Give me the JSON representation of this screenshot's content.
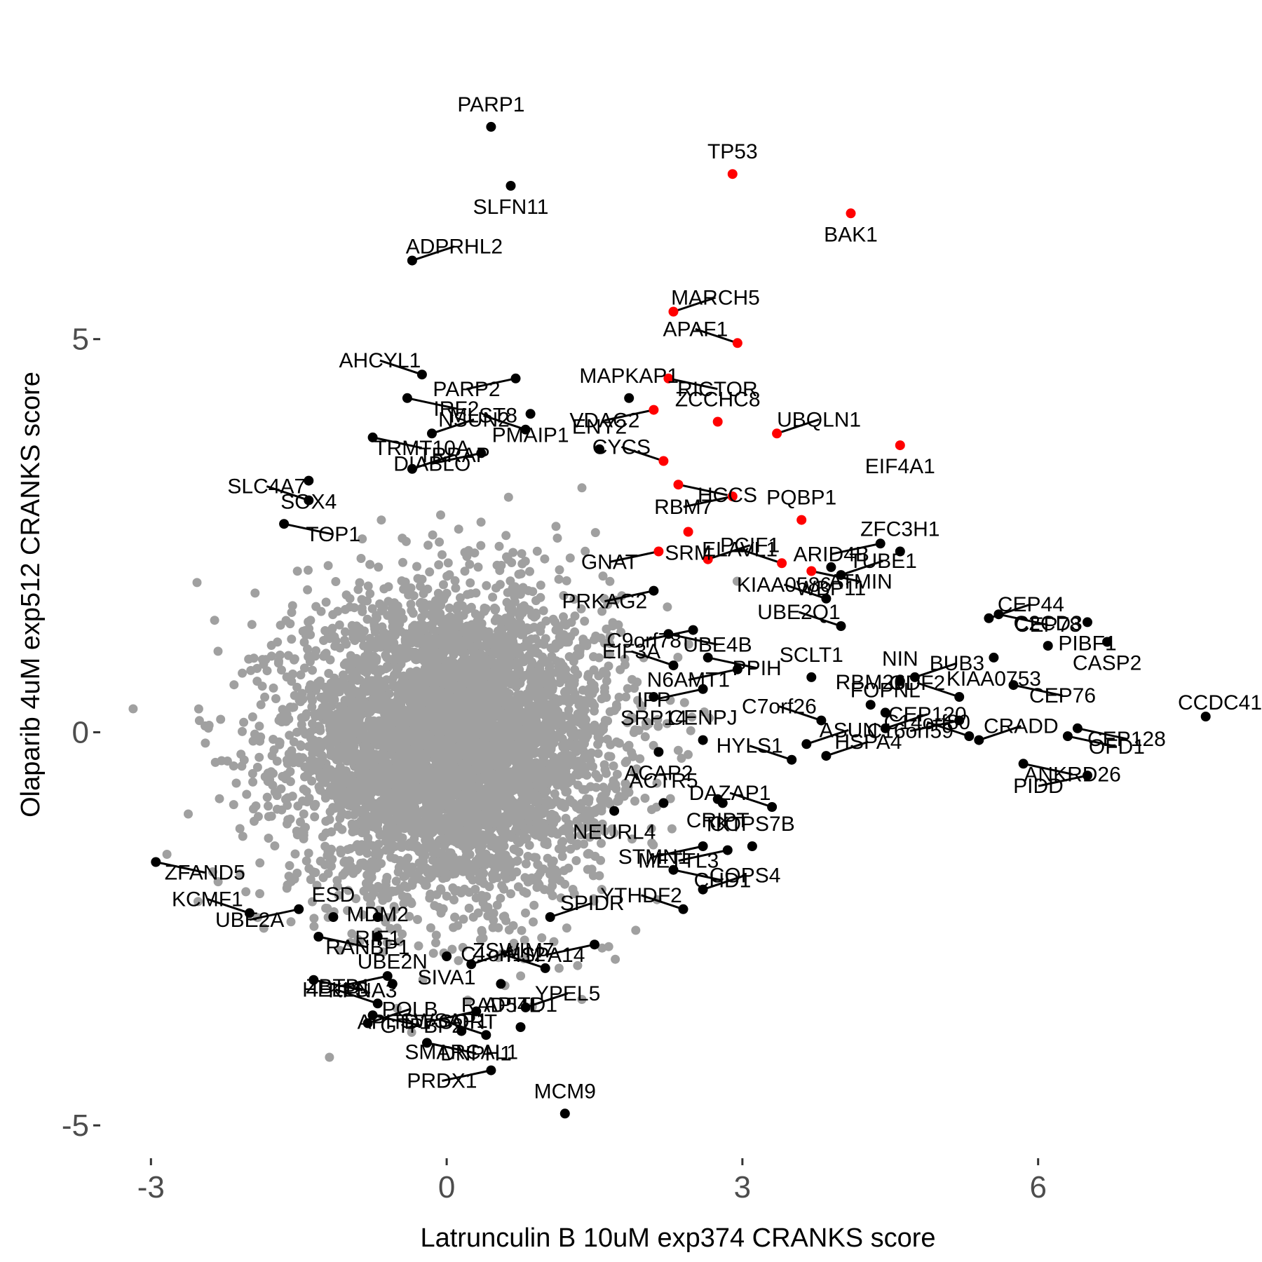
{
  "chart_data": {
    "type": "scatter",
    "title": "",
    "xlabel": "Latrunculin B 10uM exp374 CRANKS score",
    "ylabel": "Olaparib 4uM exp512 CRANKS score",
    "xlim": [
      -3.5,
      8.2
    ],
    "ylim": [
      -5.4,
      8.6
    ],
    "x_ticks": [
      -3,
      0,
      3,
      6
    ],
    "y_ticks": [
      -5,
      0,
      5
    ],
    "grid": false,
    "legend": "none",
    "colors": {
      "background": "#bfbfbf",
      "labeled": "#000000",
      "highlight": "#ff0000",
      "tick_text": "#4d4d4d"
    },
    "background_cloud": {
      "n": 5200,
      "x_mean": 0.05,
      "x_sd": 0.8,
      "y_mean": -0.15,
      "y_sd": 0.95
    },
    "highlight_points": [
      {
        "label": "TP53",
        "x": 2.9,
        "y": 7.1
      },
      {
        "label": "BAK1",
        "x": 4.1,
        "y": 6.6
      },
      {
        "label": "MARCH5",
        "x": 2.3,
        "y": 5.35
      },
      {
        "label": "APAF1",
        "x": 2.95,
        "y": 4.95
      },
      {
        "label": "RICTOR",
        "x": 2.25,
        "y": 4.5
      },
      {
        "label": "VDAC2",
        "x": 2.1,
        "y": 4.1
      },
      {
        "label": "ZCCHC8",
        "x": 2.75,
        "y": 3.95
      },
      {
        "label": "EIF4A1",
        "x": 4.6,
        "y": 3.65
      },
      {
        "label": "UBQLN1",
        "x": 3.35,
        "y": 3.8
      },
      {
        "label": "CYCS",
        "x": 2.2,
        "y": 3.45
      },
      {
        "label": "HCCS",
        "x": 2.35,
        "y": 3.15
      },
      {
        "label": "RBM7",
        "x": 2.9,
        "y": 3.0
      },
      {
        "label": "PQBP1",
        "x": 3.6,
        "y": 2.7
      },
      {
        "label": "SRM",
        "x": 2.45,
        "y": 2.55
      },
      {
        "label": "PCIF1",
        "x": 2.65,
        "y": 2.2
      },
      {
        "label": "ELAVL1",
        "x": 3.4,
        "y": 2.15
      },
      {
        "label": "ATMIN",
        "x": 3.7,
        "y": 2.05
      },
      {
        "label": "GNAT",
        "x": 2.15,
        "y": 2.3
      }
    ],
    "labeled_points": [
      {
        "label": "PARP1",
        "x": 0.45,
        "y": 7.7
      },
      {
        "label": "SLFN11",
        "x": 0.65,
        "y": 6.95
      },
      {
        "label": "ADPRHL2",
        "x": -0.35,
        "y": 6.0
      },
      {
        "label": "AHCYL1",
        "x": -0.25,
        "y": 4.55
      },
      {
        "label": "IRF2",
        "x": -0.4,
        "y": 4.25
      },
      {
        "label": "PARP2",
        "x": 0.7,
        "y": 4.5
      },
      {
        "label": "MAPKAP1",
        "x": 1.85,
        "y": 4.25
      },
      {
        "label": "PMAIP1",
        "x": 0.85,
        "y": 4.05
      },
      {
        "label": "NSUN2",
        "x": -0.15,
        "y": 3.8
      },
      {
        "label": "MLST8",
        "x": 0.8,
        "y": 3.85
      },
      {
        "label": "TRMT10A",
        "x": -0.75,
        "y": 3.75
      },
      {
        "label": "DIABLO",
        "x": 0.35,
        "y": 3.55
      },
      {
        "label": "ENY2",
        "x": 1.55,
        "y": 3.6
      },
      {
        "label": "SOX4",
        "x": -1.4,
        "y": 3.2
      },
      {
        "label": "TRRAP",
        "x": -0.35,
        "y": 3.35
      },
      {
        "label": "SLC4A7",
        "x": -1.4,
        "y": 2.95
      },
      {
        "label": "TOP1",
        "x": -1.65,
        "y": 2.65
      },
      {
        "label": "ARID4B",
        "x": 4.4,
        "y": 2.4
      },
      {
        "label": "ZFC3H1",
        "x": 4.6,
        "y": 2.3
      },
      {
        "label": "WBP11",
        "x": 3.9,
        "y": 2.1
      },
      {
        "label": "TUBE1",
        "x": 4.0,
        "y": 2.0
      },
      {
        "label": "KIAA0586",
        "x": 3.85,
        "y": 1.7
      },
      {
        "label": "CEP78",
        "x": 5.6,
        "y": 1.5
      },
      {
        "label": "PRKAG2",
        "x": 2.1,
        "y": 1.8
      },
      {
        "label": "C2CD3",
        "x": 6.1,
        "y": 1.1
      },
      {
        "label": "PIBF1",
        "x": 6.5,
        "y": 1.4
      },
      {
        "label": "CEP44",
        "x": 5.5,
        "y": 1.45
      },
      {
        "label": "UBE2Q1",
        "x": 4.0,
        "y": 1.35
      },
      {
        "label": "UBE4B",
        "x": 2.25,
        "y": 1.25
      },
      {
        "label": "C9orf78",
        "x": 2.5,
        "y": 1.3
      },
      {
        "label": "NIN",
        "x": 4.6,
        "y": 0.65
      },
      {
        "label": "CASP2",
        "x": 6.7,
        "y": 1.15
      },
      {
        "label": "BUB3",
        "x": 4.75,
        "y": 0.7
      },
      {
        "label": "EIF3A",
        "x": 2.3,
        "y": 0.85
      },
      {
        "label": "PPIH",
        "x": 2.65,
        "y": 0.95
      },
      {
        "label": "N6AMT1",
        "x": 2.95,
        "y": 0.8
      },
      {
        "label": "SCLT1",
        "x": 3.7,
        "y": 0.7
      },
      {
        "label": "KIAA0753",
        "x": 5.55,
        "y": 0.95
      },
      {
        "label": "CCDC41",
        "x": 7.7,
        "y": 0.2
      },
      {
        "label": "ODF2",
        "x": 5.2,
        "y": 0.45
      },
      {
        "label": "CEP76",
        "x": 5.75,
        "y": 0.6
      },
      {
        "label": "IPP",
        "x": 2.6,
        "y": 0.55
      },
      {
        "label": "RBM26",
        "x": 4.3,
        "y": 0.35
      },
      {
        "label": "SRP14",
        "x": 2.1,
        "y": 0.45
      },
      {
        "label": "CEP120",
        "x": 4.45,
        "y": 0.05
      },
      {
        "label": "C7orf26",
        "x": 3.8,
        "y": 0.15
      },
      {
        "label": "CEP128",
        "x": 6.4,
        "y": 0.05
      },
      {
        "label": "C16orf59",
        "x": 5.2,
        "y": 0.15
      },
      {
        "label": "CENPJ",
        "x": 2.6,
        "y": -0.1
      },
      {
        "label": "ACAP2",
        "x": 2.15,
        "y": -0.25
      },
      {
        "label": "CRADD",
        "x": 5.4,
        "y": -0.1
      },
      {
        "label": "HYLS1",
        "x": 3.5,
        "y": -0.35
      },
      {
        "label": "ANKRD26",
        "x": 5.85,
        "y": -0.4
      },
      {
        "label": "PIDD",
        "x": 6.5,
        "y": -0.55
      },
      {
        "label": "ACTR5",
        "x": 2.2,
        "y": -0.9
      },
      {
        "label": "CRIPT",
        "x": 2.75,
        "y": -0.85
      },
      {
        "label": "HSPA4",
        "x": 3.85,
        "y": -0.3
      },
      {
        "label": "DAZAP1",
        "x": 3.3,
        "y": -0.95
      },
      {
        "label": "OFD1",
        "x": 6.3,
        "y": -0.05
      },
      {
        "label": "STMN1",
        "x": 2.6,
        "y": -1.45
      },
      {
        "label": "FOPNL",
        "x": 4.45,
        "y": 0.25
      },
      {
        "label": "NEURL4",
        "x": 1.7,
        "y": -1.0
      },
      {
        "label": "ASUN",
        "x": 3.65,
        "y": -0.15
      },
      {
        "label": "C14orf80",
        "x": 5.3,
        "y": -0.05
      },
      {
        "label": "CHD1",
        "x": 2.3,
        "y": -1.75
      },
      {
        "label": "METTL3",
        "x": 2.85,
        "y": -1.5
      },
      {
        "label": "COPS7B",
        "x": 3.1,
        "y": -1.45
      },
      {
        "label": "TKT",
        "x": 2.8,
        "y": -0.9
      },
      {
        "label": "COPS4",
        "x": 2.6,
        "y": -2.0
      },
      {
        "label": "YTHDF2",
        "x": 2.4,
        "y": -2.25
      },
      {
        "label": "ZFAND5",
        "x": -2.95,
        "y": -1.65
      },
      {
        "label": "UBE2A",
        "x": -1.5,
        "y": -2.25
      },
      {
        "label": "ESD",
        "x": -1.15,
        "y": -2.35
      },
      {
        "label": "RIF1",
        "x": -0.7,
        "y": -2.35
      },
      {
        "label": "SPIDR",
        "x": 1.05,
        "y": -2.35
      },
      {
        "label": "KCMF1",
        "x": -2.0,
        "y": -2.3
      },
      {
        "label": "RANBP1",
        "x": -1.3,
        "y": -2.6
      },
      {
        "label": "HSPA14",
        "x": 1.5,
        "y": -2.7
      },
      {
        "label": "MDM2",
        "x": -0.7,
        "y": -2.6
      },
      {
        "label": "SIVA1",
        "x": 0.0,
        "y": -2.85
      },
      {
        "label": "ZSWIM7",
        "x": 0.25,
        "y": -2.95
      },
      {
        "label": "C1orf112",
        "x": 1.0,
        "y": -3.0
      },
      {
        "label": "KPNA3",
        "x": -1.35,
        "y": -3.15
      },
      {
        "label": "ZBTB1",
        "x": -0.6,
        "y": -3.1
      },
      {
        "label": "UBE2N",
        "x": -0.55,
        "y": -3.2
      },
      {
        "label": "RAD54L",
        "x": 0.55,
        "y": -3.2
      },
      {
        "label": "YPEL5",
        "x": 0.8,
        "y": -3.5
      },
      {
        "label": "HELLS",
        "x": -0.7,
        "y": -3.45
      },
      {
        "label": "GTPBP2",
        "x": -0.75,
        "y": -3.6
      },
      {
        "label": "APITD1-CORT",
        "x": 0.3,
        "y": -3.55
      },
      {
        "label": "APITD1",
        "x": 0.75,
        "y": -3.75
      },
      {
        "label": "SMARCAL1",
        "x": 0.15,
        "y": -3.8
      },
      {
        "label": "POLB",
        "x": -0.8,
        "y": -3.7
      },
      {
        "label": "SWSAP1",
        "x": 0.4,
        "y": -3.85
      },
      {
        "label": "DNPH1",
        "x": -0.2,
        "y": -3.95
      },
      {
        "label": "PRDX1",
        "x": 0.45,
        "y": -4.3
      },
      {
        "label": "MCM9",
        "x": 1.2,
        "y": -4.85
      }
    ],
    "label_offsets_note": ""
  }
}
